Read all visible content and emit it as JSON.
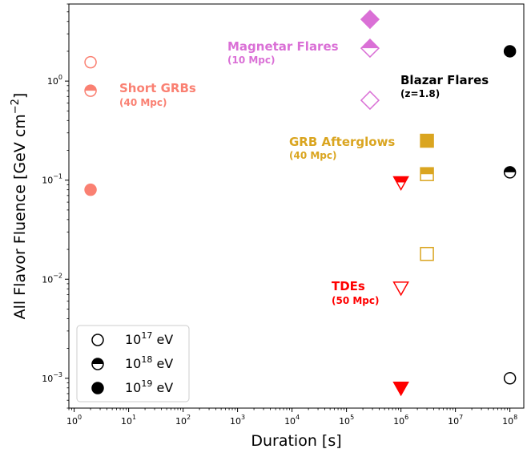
{
  "chart_data": {
    "type": "scatter",
    "xlabel": "Duration [s]",
    "ylabel": "All Flavor Fluence [GeV cm",
    "ylabel_sup": "−2",
    "ylabel_end": "]",
    "xscale": "log",
    "yscale": "log",
    "xlim": [
      0.8,
      180000000
    ],
    "ylim": [
      0.0005,
      6
    ],
    "x_ticks": [
      {
        "value": 1,
        "base": "10",
        "exp": "0"
      },
      {
        "value": 10,
        "base": "10",
        "exp": "1"
      },
      {
        "value": 100,
        "base": "10",
        "exp": "2"
      },
      {
        "value": 1000,
        "base": "10",
        "exp": "3"
      },
      {
        "value": 10000,
        "base": "10",
        "exp": "4"
      },
      {
        "value": 100000,
        "base": "10",
        "exp": "5"
      },
      {
        "value": 1000000,
        "base": "10",
        "exp": "6"
      },
      {
        "value": 10000000,
        "base": "10",
        "exp": "7"
      },
      {
        "value": 100000000,
        "base": "10",
        "exp": "8"
      }
    ],
    "y_ticks": [
      {
        "value": 0.001,
        "base": "10",
        "exp": "−3"
      },
      {
        "value": 0.01,
        "base": "10",
        "exp": "−2"
      },
      {
        "value": 0.1,
        "base": "10",
        "exp": "−1"
      },
      {
        "value": 1,
        "base": "10",
        "exp": "0"
      }
    ],
    "series": [
      {
        "name": "Short GRBs",
        "color": "#fa8072",
        "marker": "circle",
        "points": [
          {
            "x": 2,
            "y": 1.55,
            "fill": "open"
          },
          {
            "x": 2,
            "y": 0.8,
            "fill": "half"
          },
          {
            "x": 2,
            "y": 0.08,
            "fill": "full"
          }
        ]
      },
      {
        "name": "Magnetar Flares",
        "color": "#da70d6",
        "marker": "diamond",
        "points": [
          {
            "x": 270000,
            "y": 4.2,
            "fill": "full"
          },
          {
            "x": 270000,
            "y": 2.15,
            "fill": "half"
          },
          {
            "x": 270000,
            "y": 0.64,
            "fill": "open"
          }
        ]
      },
      {
        "name": "Blazar Flares",
        "color": "#000000",
        "marker": "circle",
        "points": [
          {
            "x": 100000000,
            "y": 2.0,
            "fill": "full"
          },
          {
            "x": 100000000,
            "y": 0.12,
            "fill": "half"
          },
          {
            "x": 100000000,
            "y": 0.001,
            "fill": "open"
          }
        ]
      },
      {
        "name": "GRB Afterglows",
        "color": "#daa520",
        "marker": "square",
        "points": [
          {
            "x": 3000000,
            "y": 0.25,
            "fill": "full"
          },
          {
            "x": 3000000,
            "y": 0.115,
            "fill": "half"
          },
          {
            "x": 3000000,
            "y": 0.018,
            "fill": "open"
          }
        ]
      },
      {
        "name": "TDEs",
        "color": "#ff0000",
        "marker": "triangle_down",
        "points": [
          {
            "x": 1000000,
            "y": 0.095,
            "fill": "half"
          },
          {
            "x": 1000000,
            "y": 0.0082,
            "fill": "open"
          },
          {
            "x": 1000000,
            "y": 0.0008,
            "fill": "full"
          }
        ]
      }
    ],
    "annotations": [
      {
        "title": "Short GRBs",
        "sub": "(40 Mpc)",
        "color": "#fa8072"
      },
      {
        "title": "Magnetar Flares",
        "sub": "(10 Mpc)",
        "color": "#da70d6"
      },
      {
        "title": "Blazar Flares",
        "sub": "(z=1.8)",
        "color": "#000000"
      },
      {
        "title": "GRB Afterglows",
        "sub": "(40 Mpc)",
        "color": "#daa520"
      },
      {
        "title": "TDEs",
        "sub": "(50 Mpc)",
        "color": "#ff0000"
      }
    ],
    "legend": {
      "position": "lower-left",
      "entries": [
        {
          "base": "10",
          "exp": "17",
          "unit": " eV",
          "fill": "open"
        },
        {
          "base": "10",
          "exp": "18",
          "unit": " eV",
          "fill": "half"
        },
        {
          "base": "10",
          "exp": "19",
          "unit": " eV",
          "fill": "full"
        }
      ]
    }
  }
}
